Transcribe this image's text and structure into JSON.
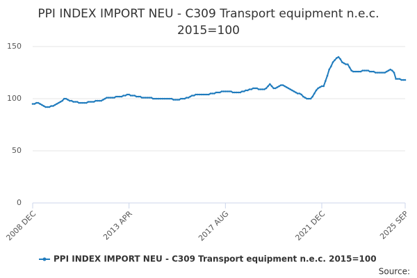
{
  "chart_data": {
    "type": "line",
    "title": "PPI INDEX IMPORT NEU - C309 Transport equipment n.e.c. 2015=100",
    "source": "Source:",
    "categories": [
      "2008 DEC",
      null,
      null,
      null,
      null,
      null,
      null,
      null,
      null,
      null,
      null,
      null,
      null,
      null,
      null,
      null,
      null,
      null,
      null,
      null,
      null,
      null,
      null,
      null,
      null,
      null,
      null,
      null,
      null,
      null,
      null,
      null,
      null,
      null,
      null,
      null,
      null,
      null,
      null,
      null,
      null,
      null,
      null,
      null,
      null,
      null,
      null,
      null,
      null,
      null,
      null,
      null,
      "2013 APR",
      null,
      null,
      null,
      null,
      null,
      null,
      null,
      null,
      null,
      null,
      null,
      null,
      null,
      null,
      null,
      null,
      null,
      null,
      null,
      null,
      null,
      null,
      null,
      null,
      null,
      null,
      null,
      null,
      null,
      null,
      null,
      null,
      null,
      null,
      null,
      null,
      null,
      null,
      null,
      null,
      null,
      null,
      null,
      null,
      null,
      null,
      null,
      null,
      null,
      null,
      null,
      "2017 AUG",
      null,
      null,
      null,
      null,
      null,
      null,
      null,
      null,
      null,
      null,
      null,
      null,
      null,
      null,
      null,
      null,
      null,
      null,
      null,
      null,
      null,
      null,
      null,
      null,
      null,
      null,
      null,
      null,
      null,
      null,
      null,
      null,
      null,
      null,
      null,
      null,
      null,
      null,
      null,
      null,
      null,
      null,
      null,
      null,
      null,
      null,
      null,
      null,
      null,
      null,
      null,
      "2021 DEC",
      null,
      null,
      null,
      null,
      null,
      null,
      null,
      null,
      null,
      null,
      null,
      null,
      null,
      null,
      null,
      null,
      null,
      null,
      null,
      null,
      null,
      null,
      null,
      null,
      null,
      null,
      null,
      null,
      null,
      null,
      null,
      null,
      null,
      null,
      null,
      null,
      null,
      null,
      null,
      null,
      null,
      null,
      null,
      null,
      "2025 SEP"
    ],
    "series": [
      {
        "name": "PPI INDEX IMPORT NEU - C309 Transport equipment n.e.c. 2015=100",
        "color": "#1f7bbd",
        "values": [
          95,
          95,
          96,
          96,
          95,
          94,
          93,
          92,
          92,
          92,
          93,
          93,
          94,
          95,
          96,
          97,
          98,
          100,
          100,
          99,
          98,
          98,
          97,
          97,
          97,
          96,
          96,
          96,
          96,
          96,
          97,
          97,
          97,
          97,
          98,
          98,
          98,
          98,
          99,
          100,
          101,
          101,
          101,
          101,
          101,
          102,
          102,
          102,
          102,
          103,
          103,
          104,
          104,
          103,
          103,
          103,
          102,
          102,
          102,
          101,
          101,
          101,
          101,
          101,
          101,
          100,
          100,
          100,
          100,
          100,
          100,
          100,
          100,
          100,
          100,
          100,
          99,
          99,
          99,
          99,
          100,
          100,
          100,
          101,
          101,
          102,
          103,
          103,
          104,
          104,
          104,
          104,
          104,
          104,
          104,
          104,
          105,
          105,
          105,
          106,
          106,
          106,
          107,
          107,
          107,
          107,
          107,
          107,
          106,
          106,
          106,
          106,
          106,
          107,
          107,
          108,
          108,
          109,
          109,
          110,
          110,
          110,
          109,
          109,
          109,
          109,
          110,
          112,
          114,
          112,
          110,
          110,
          111,
          112,
          113,
          113,
          112,
          111,
          110,
          109,
          108,
          107,
          106,
          105,
          105,
          104,
          102,
          101,
          100,
          100,
          100,
          102,
          105,
          108,
          110,
          111,
          112,
          112,
          117,
          122,
          128,
          131,
          135,
          137,
          139,
          140,
          138,
          135,
          134,
          133,
          133,
          130,
          127,
          126,
          126,
          126,
          126,
          126,
          127,
          127,
          127,
          127,
          126,
          126,
          126,
          125,
          125,
          125,
          125,
          125,
          125,
          126,
          127,
          128,
          127,
          125,
          119,
          119,
          119,
          118,
          118,
          118
        ]
      }
    ],
    "ylim": [
      0,
      150
    ],
    "yticks": [
      0,
      50,
      100,
      150
    ],
    "grid": true,
    "legend": "bottom"
  }
}
